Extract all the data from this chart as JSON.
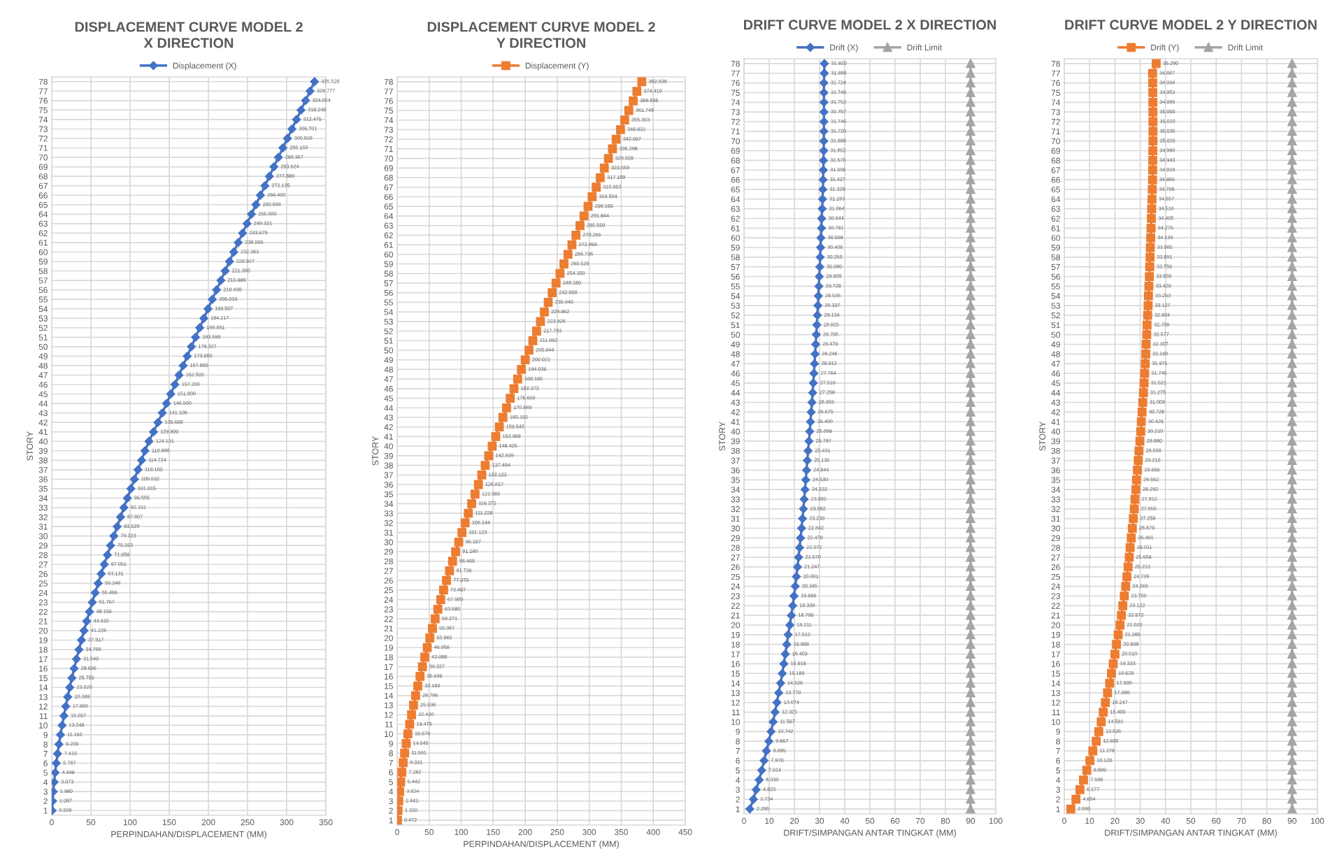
{
  "chart_data": [
    {
      "type": "line",
      "orientation": "horizontal",
      "title": "DISPLACEMENT CURVE MODEL 2\nX DIRECTION",
      "xlabel": "PERPINDAHAN/DISPLACEMENT (MM)",
      "ylabel": "STORY",
      "xlim": [
        0,
        350
      ],
      "xticks": [
        0,
        50,
        100,
        150,
        200,
        250,
        300,
        350
      ],
      "grid": true,
      "legend": "top",
      "line_style": "solid",
      "categories": [
        "78",
        "77",
        "76",
        "75",
        "74",
        "73",
        "72",
        "71",
        "70",
        "69",
        "68",
        "67",
        "66",
        "65",
        "64",
        "63",
        "62",
        "61",
        "60",
        "59",
        "58",
        "57",
        "56",
        "55",
        "54",
        "53",
        "52",
        "51",
        "50",
        "49",
        "48",
        "47",
        "46",
        "45",
        "44",
        "43",
        "42",
        "41",
        "40",
        "39",
        "38",
        "37",
        "36",
        "35",
        "34",
        "33",
        "32",
        "31",
        "30",
        "29",
        "28",
        "27",
        "26",
        "25",
        "24",
        "23",
        "22",
        "21",
        "20",
        "19",
        "18",
        "17",
        "16",
        "15",
        "14",
        "13",
        "12",
        "11",
        "10",
        "9",
        "8",
        "7",
        "6",
        "5",
        "4",
        "3",
        "2",
        "1"
      ],
      "series": [
        {
          "name": "Displacement (X)",
          "color": "#4472c4",
          "marker": "diamond",
          "values": [
            335.526,
            329.777,
            324.054,
            318.248,
            312.475,
            306.701,
            300.928,
            295.15,
            289.367,
            283.624,
            277.889,
            272.135,
            266.4,
            260.688,
            255.0,
            249.321,
            243.675,
            238.065,
            232.383,
            226.927,
            221.39,
            215.889,
            210.43,
            205.01,
            199.507,
            194.217,
            188.881,
            183.589,
            178.327,
            173.0,
            167.8,
            162.5,
            157.2,
            151.9,
            146.5,
            141.1,
            135.6,
            129.9,
            124.131,
            118.986,
            114.724,
            110.102,
            105.532,
            101.015,
            96.555,
            92.151,
            87.807,
            83.529,
            79.323,
            75.153,
            71.056,
            67.051,
            63.131,
            59.248,
            55.466,
            51.767,
            48.156,
            44.63,
            41.228,
            37.917,
            34.7,
            31.548,
            28.606,
            25.75,
            23.02,
            20.388,
            17.89,
            15.507,
            13.248,
            11.162,
            9.209,
            7.415,
            5.787,
            4.348,
            3.073,
            1.98,
            1.087,
            0.509
          ],
          "value_labels": [
            "335.526",
            "329.777",
            "324.054",
            "318.248",
            "312.475",
            "306.701",
            "300.928",
            "295.150",
            "289.367",
            "283.624",
            "277.889",
            "272.135",
            "266.400",
            "260.688",
            "255.000",
            "249.321",
            "243.675",
            "238.065",
            "232.383",
            "226.927",
            "221.390",
            "215.889",
            "210.430",
            "205.010",
            "199.507",
            "194.217",
            "188.881",
            "183.589",
            "178.327",
            "173.000",
            "167.800",
            "162.500",
            "157.200",
            "151.900",
            "146.500",
            "141.100",
            "135.600",
            "129.900",
            "124.131",
            "118.986",
            "114.724",
            "110.102",
            "105.532",
            "101.015",
            "96.555",
            "92.151",
            "87.807",
            "83.529",
            "79.323",
            "75.153",
            "71.056",
            "67.051",
            "63.131",
            "59.248",
            "55.466",
            "51.767",
            "48.156",
            "44.630",
            "41.228",
            "37.917",
            "34.700",
            "31.548",
            "28.606",
            "25.750",
            "23.020",
            "20.388",
            "17.890",
            "15.507",
            "13.248",
            "11.162",
            "9.209",
            "7.415",
            "5.787",
            "4.348",
            "3.073",
            "1.980",
            "1.087",
            "0.509"
          ]
        }
      ]
    },
    {
      "type": "line",
      "orientation": "horizontal",
      "title": "DISPLACEMENT CURVE MODEL 2\nY DIRECTION",
      "xlabel": "PERPINDAHAN/DISPLACEMENT (MM)",
      "ylabel": "STORY",
      "xlim": [
        0,
        450
      ],
      "xticks": [
        0,
        50,
        100,
        150,
        200,
        250,
        300,
        350,
        400,
        450
      ],
      "grid": true,
      "legend": "top",
      "line_style": "solid",
      "categories": [
        "78",
        "77",
        "76",
        "75",
        "74",
        "73",
        "72",
        "71",
        "70",
        "69",
        "68",
        "67",
        "66",
        "65",
        "64",
        "63",
        "62",
        "61",
        "60",
        "59",
        "58",
        "57",
        "56",
        "55",
        "54",
        "53",
        "52",
        "51",
        "50",
        "49",
        "48",
        "47",
        "46",
        "45",
        "44",
        "43",
        "42",
        "41",
        "40",
        "39",
        "38",
        "37",
        "36",
        "35",
        "34",
        "33",
        "32",
        "31",
        "30",
        "29",
        "28",
        "27",
        "26",
        "25",
        "24",
        "23",
        "22",
        "21",
        "20",
        "19",
        "18",
        "17",
        "16",
        "15",
        "14",
        "13",
        "12",
        "11",
        "10",
        "9",
        "8",
        "7",
        "6",
        "5",
        "4",
        "3",
        "2",
        "1"
      ],
      "series": [
        {
          "name": "Displacement (Y)",
          "color": "#ed7d31",
          "marker": "square",
          "values": [
            382.038,
            374.419,
            368.696,
            361.749,
            355.303,
            348.832,
            342.007,
            336.298,
            329.928,
            323.559,
            317.199,
            310.853,
            304.504,
            298.165,
            291.844,
            285.55,
            279.256,
            272.968,
            266.736,
            260.529,
            254.35,
            248.18,
            242.05,
            235.94,
            229.862,
            223.826,
            217.793,
            211.882,
            205.844,
            200.021,
            194.036,
            188.185,
            182.372,
            176.6,
            170.869,
            165.192,
            159.545,
            153.958,
            148.426,
            142.939,
            137.494,
            132.122,
            126.817,
            121.565,
            116.372,
            111.228,
            106.144,
            101.123,
            96.167,
            91.28,
            86.469,
            81.736,
            77.07,
            72.487,
            67.989,
            63.58,
            59.271,
            55.067,
            50.965,
            46.958,
            43.088,
            39.337,
            35.698,
            32.183,
            28.796,
            25.536,
            22.43,
            19.476,
            16.679,
            14.045,
            11.591,
            9.331,
            7.282,
            5.442,
            3.824,
            2.443,
            1.32,
            0.472
          ],
          "value_labels": [
            "382.038",
            "374.419",
            "368.696",
            "361.749",
            "355.303",
            "348.832",
            "342.007",
            "336.298",
            "329.928",
            "323.559",
            "317.199",
            "310.853",
            "304.504",
            "298.165",
            "291.844",
            "285.550",
            "279.256",
            "272.968",
            "266.736",
            "260.529",
            "254.350",
            "248.180",
            "242.050",
            "235.940",
            "229.862",
            "223.826",
            "217.793",
            "211.882",
            "205.844",
            "200.021",
            "194.036",
            "188.185",
            "182.372",
            "176.600",
            "170.869",
            "165.192",
            "159.545",
            "153.958",
            "148.426",
            "142.939",
            "137.494",
            "132.122",
            "126.817",
            "121.565",
            "116.372",
            "111.228",
            "106.144",
            "101.123",
            "96.167",
            "91.280",
            "86.469",
            "81.736",
            "77.070",
            "72.487",
            "67.989",
            "63.580",
            "59.271",
            "55.067",
            "50.965",
            "46.958",
            "43.088",
            "39.337",
            "35.698",
            "32.183",
            "28.796",
            "25.536",
            "22.430",
            "19.476",
            "16.679",
            "14.045",
            "11.591",
            "9.331",
            "7.282",
            "5.442",
            "3.824",
            "2.443",
            "1.320",
            "0.472"
          ]
        }
      ]
    },
    {
      "type": "line",
      "orientation": "horizontal",
      "title": "DRIFT CURVE MODEL 2 X DIRECTION",
      "xlabel": "DRIFT/SIMPANGAN ANTAR TINGKAT (MM)",
      "ylabel": "STORY",
      "xlim": [
        0,
        100
      ],
      "xticks": [
        0,
        10,
        20,
        30,
        40,
        50,
        60,
        70,
        80,
        90,
        100
      ],
      "grid": true,
      "legend": "top",
      "line_style": "solid",
      "categories": [
        "78",
        "77",
        "76",
        "75",
        "74",
        "73",
        "72",
        "71",
        "70",
        "69",
        "68",
        "67",
        "66",
        "65",
        "64",
        "63",
        "62",
        "61",
        "60",
        "59",
        "58",
        "57",
        "56",
        "55",
        "54",
        "53",
        "52",
        "51",
        "50",
        "49",
        "48",
        "47",
        "46",
        "45",
        "44",
        "43",
        "42",
        "41",
        "40",
        "39",
        "38",
        "37",
        "36",
        "35",
        "34",
        "33",
        "32",
        "31",
        "30",
        "29",
        "28",
        "27",
        "26",
        "25",
        "24",
        "23",
        "22",
        "21",
        "20",
        "19",
        "18",
        "17",
        "16",
        "15",
        "14",
        "13",
        "12",
        "11",
        "10",
        "9",
        "8",
        "7",
        "6",
        "5",
        "4",
        "3",
        "2",
        "1"
      ],
      "series": [
        {
          "name": "Drift (X)",
          "color": "#4472c4",
          "marker": "diamond",
          "values": [
            31.92,
            31.886,
            31.724,
            31.746,
            31.752,
            31.757,
            31.746,
            31.72,
            31.686,
            31.652,
            31.576,
            31.506,
            31.427,
            31.328,
            31.193,
            31.064,
            30.844,
            30.781,
            30.558,
            30.406,
            30.25,
            30.08,
            29.909,
            29.728,
            29.535,
            29.337,
            29.134,
            28.925,
            28.705,
            28.479,
            28.246,
            28.012,
            27.764,
            27.516,
            27.258,
            26.993,
            26.675,
            26.4,
            26.098,
            25.797,
            25.431,
            25.135,
            24.844,
            24.53,
            24.222,
            23.892,
            23.582,
            23.23,
            22.842,
            22.47,
            22.072,
            21.67,
            21.247,
            20.801,
            20.345,
            19.868,
            19.339,
            18.79,
            18.211,
            17.512,
            16.968,
            16.403,
            15.818,
            15.188,
            14.526,
            13.77,
            13.074,
            12.321,
            11.567,
            10.742,
            9.867,
            8.895,
            7.97,
            7.014,
            6.03,
            4.823,
            3.734,
            2.295
          ],
          "value_labels": [
            "31.920",
            "31.886",
            "31.724",
            "31.746",
            "31.752",
            "31.757",
            "31.746",
            "31.720",
            "31.686",
            "31.652",
            "31.576",
            "31.506",
            "31.427",
            "31.328",
            "31.193",
            "31.064",
            "30.844",
            "30.781",
            "30.558",
            "30.406",
            "30.250",
            "30.080",
            "29.909",
            "29.728",
            "29.535",
            "29.337",
            "29.134",
            "28.925",
            "28.705",
            "28.479",
            "28.246",
            "28.012",
            "27.764",
            "27.516",
            "27.258",
            "26.993",
            "26.675",
            "26.400",
            "26.098",
            "25.797",
            "25.431",
            "25.135",
            "24.844",
            "24.530",
            "24.222",
            "23.892",
            "23.582",
            "23.230",
            "22.842",
            "22.470",
            "22.072",
            "21.670",
            "21.247",
            "20.801",
            "20.345",
            "19.868",
            "19.339",
            "18.790",
            "18.211",
            "17.512",
            "16.968",
            "16.403",
            "15.818",
            "15.188",
            "14.526",
            "13.770",
            "13.074",
            "12.321",
            "11.567",
            "10.742",
            "9.867",
            "8.895",
            "7.970",
            "7.014",
            "6.030",
            "4.823",
            "3.734",
            "2.295"
          ]
        },
        {
          "name": "Drift Limit",
          "color": "#a5a5a5",
          "marker": "triangle",
          "values": [
            90,
            90,
            90,
            90,
            90,
            90,
            90,
            90,
            90,
            90,
            90,
            90,
            90,
            90,
            90,
            90,
            90,
            90,
            90,
            90,
            90,
            90,
            90,
            90,
            90,
            90,
            90,
            90,
            90,
            90,
            90,
            90,
            90,
            90,
            90,
            90,
            90,
            90,
            90,
            90,
            90,
            90,
            90,
            90,
            90,
            90,
            90,
            90,
            90,
            90,
            90,
            90,
            90,
            90,
            90,
            90,
            90,
            90,
            90,
            90,
            90,
            90,
            90,
            90,
            90,
            90,
            90,
            90,
            90,
            90,
            90,
            90,
            90,
            90,
            90,
            90,
            90,
            90
          ]
        }
      ]
    },
    {
      "type": "line",
      "orientation": "horizontal",
      "title": "DRIFT CURVE MODEL 2 Y DIRECTION",
      "xlabel": "DRIFT/SIMPANGAN ANTAR TINGKAT (MM)",
      "ylabel": "STORY",
      "xlim": [
        0,
        100
      ],
      "xticks": [
        0,
        10,
        20,
        30,
        40,
        50,
        60,
        70,
        80,
        90,
        100
      ],
      "grid": true,
      "legend": "top",
      "line_style": "solid",
      "categories": [
        "78",
        "77",
        "76",
        "75",
        "74",
        "73",
        "72",
        "71",
        "70",
        "69",
        "68",
        "67",
        "66",
        "65",
        "64",
        "63",
        "62",
        "61",
        "60",
        "59",
        "58",
        "57",
        "56",
        "55",
        "54",
        "53",
        "52",
        "51",
        "50",
        "49",
        "48",
        "47",
        "46",
        "45",
        "44",
        "43",
        "42",
        "41",
        "40",
        "39",
        "38",
        "37",
        "36",
        "35",
        "34",
        "33",
        "32",
        "31",
        "30",
        "29",
        "28",
        "27",
        "26",
        "25",
        "24",
        "23",
        "22",
        "21",
        "20",
        "19",
        "18",
        "17",
        "16",
        "15",
        "14",
        "13",
        "12",
        "11",
        "10",
        "9",
        "8",
        "7",
        "6",
        "5",
        "4",
        "3",
        "2",
        "1"
      ],
      "series": [
        {
          "name": "Drift (Y)",
          "color": "#ed7d31",
          "marker": "square",
          "values": [
            36.29,
            34.887,
            34.934,
            34.953,
            34.995,
            35.0,
            35.02,
            35.035,
            35.02,
            34.98,
            34.943,
            34.919,
            34.865,
            34.768,
            34.657,
            34.516,
            34.405,
            34.276,
            34.139,
            33.985,
            33.891,
            33.759,
            33.6,
            33.42,
            33.253,
            33.127,
            32.934,
            32.709,
            32.577,
            32.307,
            32.18,
            31.971,
            31.745,
            31.521,
            31.275,
            31.009,
            30.728,
            30.426,
            30.21,
            29.88,
            29.508,
            29.21,
            28.886,
            28.562,
            28.292,
            27.912,
            27.655,
            27.258,
            26.879,
            26.461,
            26.011,
            25.658,
            25.212,
            24.739,
            24.26,
            23.7,
            23.122,
            22.572,
            22.02,
            21.285,
            20.608,
            20.01,
            19.333,
            18.629,
            17.93,
            17.08,
            16.247,
            15.4,
            14.582,
            13.636,
            12.6,
            11.276,
            10.12,
            8.899,
            7.586,
            6.177,
            4.604,
            2.595
          ],
          "value_labels": [
            "36.290",
            "34.887",
            "34.934",
            "34.953",
            "34.995",
            "35.000",
            "35.020",
            "35.035",
            "35.020",
            "34.980",
            "34.943",
            "34.919",
            "34.865",
            "34.768",
            "34.657",
            "34.516",
            "34.405",
            "34.276",
            "34.139",
            "33.985",
            "33.891",
            "33.759",
            "33.600",
            "33.420",
            "33.253",
            "33.127",
            "32.934",
            "32.709",
            "32.577",
            "32.307",
            "32.180",
            "31.971",
            "31.745",
            "31.521",
            "31.275",
            "31.009",
            "30.728",
            "30.426",
            "30.210",
            "29.880",
            "29.508",
            "29.210",
            "28.886",
            "28.562",
            "28.292",
            "27.912",
            "27.655",
            "27.258",
            "26.879",
            "26.461",
            "26.011",
            "25.658",
            "25.212",
            "24.739",
            "24.260",
            "23.700",
            "23.122",
            "22.572",
            "22.020",
            "21.285",
            "20.608",
            "20.010",
            "19.333",
            "18.629",
            "17.930",
            "17.080",
            "16.247",
            "15.400",
            "14.582",
            "13.636",
            "12.600",
            "11.276",
            "10.120",
            "8.899",
            "7.586",
            "6.177",
            "4.604",
            "2.595"
          ]
        },
        {
          "name": "Drift Limit",
          "color": "#a5a5a5",
          "marker": "triangle",
          "values": [
            90,
            90,
            90,
            90,
            90,
            90,
            90,
            90,
            90,
            90,
            90,
            90,
            90,
            90,
            90,
            90,
            90,
            90,
            90,
            90,
            90,
            90,
            90,
            90,
            90,
            90,
            90,
            90,
            90,
            90,
            90,
            90,
            90,
            90,
            90,
            90,
            90,
            90,
            90,
            90,
            90,
            90,
            90,
            90,
            90,
            90,
            90,
            90,
            90,
            90,
            90,
            90,
            90,
            90,
            90,
            90,
            90,
            90,
            90,
            90,
            90,
            90,
            90,
            90,
            90,
            90,
            90,
            90,
            90,
            90,
            90,
            90,
            90,
            90,
            90,
            90,
            90,
            90
          ]
        }
      ]
    }
  ]
}
